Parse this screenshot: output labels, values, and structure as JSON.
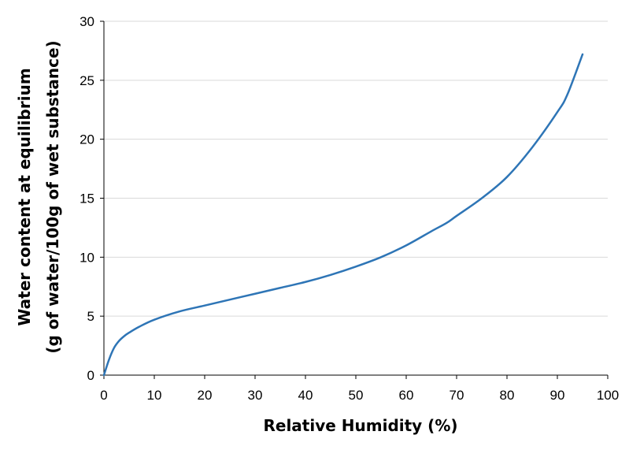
{
  "chart_data": {
    "type": "line",
    "xlabel": "Relative Humidity (%)",
    "ylabel_lines": [
      "Water content at equilibrium",
      "(g of water/100g of wet substance)"
    ],
    "xlim": [
      0,
      100
    ],
    "ylim": [
      0,
      30
    ],
    "xticks": [
      0,
      10,
      20,
      30,
      40,
      50,
      60,
      70,
      80,
      90,
      100
    ],
    "yticks": [
      0,
      5,
      10,
      15,
      20,
      25,
      30
    ],
    "grid": "horizontal",
    "legend": "none",
    "colors": {
      "series": "#2e75b6",
      "grid": "#d9d9d9",
      "axis": "#000000"
    },
    "series": [
      {
        "x": [
          0,
          1,
          2,
          3,
          4,
          5,
          7,
          10,
          15,
          20,
          25,
          30,
          35,
          40,
          45,
          50,
          55,
          60,
          65,
          68,
          70,
          75,
          80,
          85,
          90,
          92,
          95
        ],
        "y": [
          0,
          1.3,
          2.3,
          2.9,
          3.3,
          3.6,
          4.1,
          4.7,
          5.4,
          5.9,
          6.4,
          6.9,
          7.4,
          7.9,
          8.5,
          9.2,
          10.0,
          11.0,
          12.2,
          12.9,
          13.5,
          15.0,
          16.8,
          19.3,
          22.3,
          23.8,
          27.2
        ]
      }
    ]
  }
}
